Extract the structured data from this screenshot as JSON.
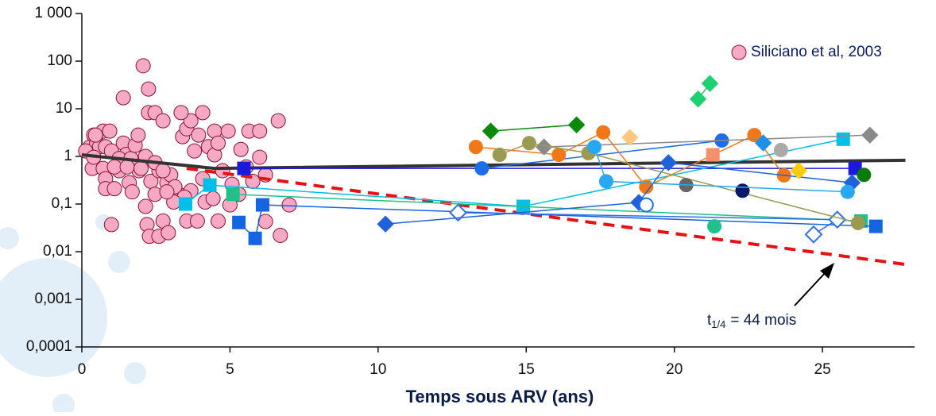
{
  "chart_data": {
    "type": "scatter",
    "log_y": true,
    "xlabel": "Temps sous ARV (ans)",
    "xlim": [
      0,
      28
    ],
    "xticks": [
      0,
      5,
      10,
      15,
      20,
      25
    ],
    "ylim": [
      0.0001,
      1000
    ],
    "yticks": [
      {
        "value": 0.0001,
        "label": "0,0001"
      },
      {
        "value": 0.001,
        "label": "0,001"
      },
      {
        "value": 0.01,
        "label": "0,01"
      },
      {
        "value": 0.1,
        "label": "0,1"
      },
      1,
      10,
      100,
      {
        "value": 1000,
        "label": "1 000"
      }
    ],
    "annotation": {
      "text": "t",
      "sub": "1/4",
      "rest": "= 44 mois"
    },
    "legend": "top-right",
    "series": [
      {
        "name": "Siliciano et al, 2003",
        "color": "#f7a8c4",
        "marker": "circle",
        "line": false,
        "x": [
          0.27,
          0.4,
          0.72,
          0.94,
          0.5,
          0.6,
          0.8,
          1.0,
          0.35,
          0.72,
          0.8,
          0.8,
          1.1,
          1.26,
          1.4,
          1.5,
          1.26,
          1.6,
          1.4,
          1.66,
          1.7,
          1.8,
          1.9,
          1.93,
          2.07,
          2.25,
          2.25,
          2.47,
          2.74,
          2.15,
          2.15,
          2.33,
          2.47,
          2.2,
          2.28,
          2.6,
          2.74,
          2.92,
          2.6,
          2.87,
          3.0,
          3.27,
          3.4,
          3.54,
          3.68,
          3.35,
          3.8,
          3.68,
          3.54,
          3.94,
          4.08,
          4.27,
          4.48,
          4.48,
          4.6,
          4.75,
          4.94,
          5.07,
          5.3,
          5.37,
          5.55,
          5.64,
          5.77,
          6.0,
          6.0,
          6.2,
          6.2,
          6.63,
          6.7,
          7.0,
          4.08,
          4.16,
          4.43,
          4.6,
          3.9,
          1.0,
          0.46,
          0.13,
          0.4,
          1.1,
          1.53,
          2.0,
          2.47,
          2.74,
          3.14,
          3.46,
          3.1,
          2.87,
          5.0
        ],
        "values": [
          1.58,
          2.8,
          3.4,
          3.4,
          1.9,
          1.6,
          1.6,
          1.3,
          0.56,
          0.56,
          0.34,
          0.21,
          0.21,
          0.5,
          1.9,
          1.1,
          0.9,
          0.28,
          17,
          0.9,
          0.18,
          1.7,
          2.8,
          0.5,
          80,
          26,
          8.3,
          8.3,
          5.6,
          1.0,
          0.089,
          0.3,
          0.16,
          0.037,
          0.021,
          0.021,
          0.044,
          0.025,
          0.5,
          0.28,
          0.41,
          0.16,
          2.6,
          3.8,
          5.6,
          8.3,
          1.3,
          0.19,
          0.044,
          2.8,
          8.3,
          1.6,
          3.4,
          1.08,
          1.9,
          0.5,
          3.4,
          0.26,
          0.16,
          1.4,
          0.6,
          3.4,
          0.3,
          0.96,
          3.4,
          0.41,
          0.043,
          5.6,
          0.022,
          0.096,
          0.34,
          0.11,
          0.13,
          0.044,
          0.044,
          0.037,
          2.8,
          1.3,
          0.96,
          0.6,
          0.6,
          0.56,
          0.74,
          0.5,
          0.23,
          0.14,
          0.11,
          0.18,
          0.096
        ]
      },
      {
        "color": "#333333",
        "marker": "none",
        "line": true,
        "width": 4,
        "x": [
          0,
          4.48,
          27.8
        ],
        "values": [
          1.08,
          0.56,
          0.83
        ]
      },
      {
        "color": "#e81010",
        "marker": "none",
        "line": true,
        "width": 4,
        "dashed": true,
        "x": [
          3.54,
          27.8
        ],
        "values": [
          0.56,
          0.0054
        ]
      },
      {
        "color": "#1a1adc",
        "marker": "square",
        "line": true,
        "x": [
          5.47,
          26.1
        ],
        "values": [
          0.56,
          0.56
        ]
      },
      {
        "color": "#00bfe8",
        "marker": "square",
        "line": true,
        "x": [
          3.5,
          4.32,
          14.9,
          25.7
        ],
        "values": [
          0.1,
          0.25,
          0.089,
          2.3
        ]
      },
      {
        "color": "#1fc08a",
        "marker": "square",
        "line": true,
        "x": [
          5.1,
          26.3
        ],
        "values": [
          0.16,
          0.044
        ]
      },
      {
        "color": "#1565e0",
        "marker": "square",
        "line": true,
        "x": [
          5.3,
          5.85,
          6.1,
          26.8
        ],
        "values": [
          0.041,
          0.019,
          0.096,
          0.034
        ]
      },
      {
        "color": "#0a8a0a",
        "marker": "diamond",
        "line": true,
        "x": [
          13.8,
          16.7
        ],
        "values": [
          3.4,
          4.6
        ]
      },
      {
        "color": "#1ed070",
        "marker": "diamond",
        "line": true,
        "x": [
          20.8,
          21.2
        ],
        "values": [
          16,
          34
        ]
      },
      {
        "color": "#1e6ee8",
        "marker": "circle",
        "line": true,
        "x": [
          13.5,
          21.6
        ],
        "values": [
          0.56,
          2.15
        ]
      },
      {
        "color": "#f07818",
        "marker": "circle",
        "line": true,
        "x": [
          13.3,
          16.1,
          17.6,
          19.05,
          22.7,
          23.7
        ],
        "values": [
          1.58,
          1.08,
          3.2,
          0.23,
          2.8,
          0.4
        ]
      },
      {
        "color": "#8a8a8a",
        "marker": "diamond",
        "line": true,
        "x": [
          15.6,
          26.6
        ],
        "values": [
          1.58,
          2.8
        ]
      },
      {
        "color": "#2f6fe0",
        "marker": "diamond",
        "open": true,
        "line": true,
        "x": [
          12.7,
          25.5,
          24.7
        ],
        "values": [
          0.066,
          0.047,
          0.023
        ]
      },
      {
        "color": "#1e62dc",
        "marker": "diamond",
        "line": true,
        "x": [
          10.25,
          18.8,
          19.8,
          26.0
        ],
        "values": [
          0.038,
          0.108,
          0.74,
          0.28
        ]
      },
      {
        "color": "#9a9a50",
        "marker": "circle",
        "line": true,
        "x": [
          14.1,
          15.1,
          17.1,
          26.2
        ],
        "values": [
          1.08,
          1.9,
          1.17,
          0.04
        ]
      },
      {
        "color": "#666666",
        "marker": "circle",
        "line": false,
        "x": [
          20.4
        ],
        "values": [
          0.25
        ]
      },
      {
        "color": "#0a1a6a",
        "marker": "circle",
        "line": false,
        "x": [
          22.3
        ],
        "values": [
          0.19
        ]
      },
      {
        "color": "#0a7a0a",
        "marker": "circle",
        "line": false,
        "x": [
          26.4
        ],
        "values": [
          0.41
        ]
      },
      {
        "color": "#20c08a",
        "marker": "circle",
        "line": false,
        "x": [
          21.35
        ],
        "values": [
          0.034
        ]
      },
      {
        "color": "#1e6ee8",
        "marker": "circle",
        "open": true,
        "line": false,
        "x": [
          19.05
        ],
        "values": [
          0.096
        ]
      },
      {
        "color": "#aaaaaa",
        "marker": "circle",
        "line": false,
        "x": [
          23.6
        ],
        "values": [
          1.36
        ]
      },
      {
        "color": "#28a8f0",
        "marker": "circle",
        "line": true,
        "x": [
          17.3,
          17.7,
          25.85
        ],
        "values": [
          1.58,
          0.3,
          0.18
        ]
      },
      {
        "color": "#ffc880",
        "marker": "diamond",
        "line": false,
        "x": [
          18.5
        ],
        "values": [
          2.5
        ]
      },
      {
        "color": "#f4906a",
        "marker": "square",
        "line": false,
        "x": [
          21.3
        ],
        "values": [
          1.08
        ]
      },
      {
        "color": "#ffcc00",
        "marker": "diamond",
        "line": false,
        "x": [
          24.2
        ],
        "values": [
          0.5
        ]
      },
      {
        "color": "#1e90e8",
        "marker": "diamond",
        "line": false,
        "x": [
          23.0
        ],
        "values": [
          1.92
        ]
      }
    ]
  }
}
